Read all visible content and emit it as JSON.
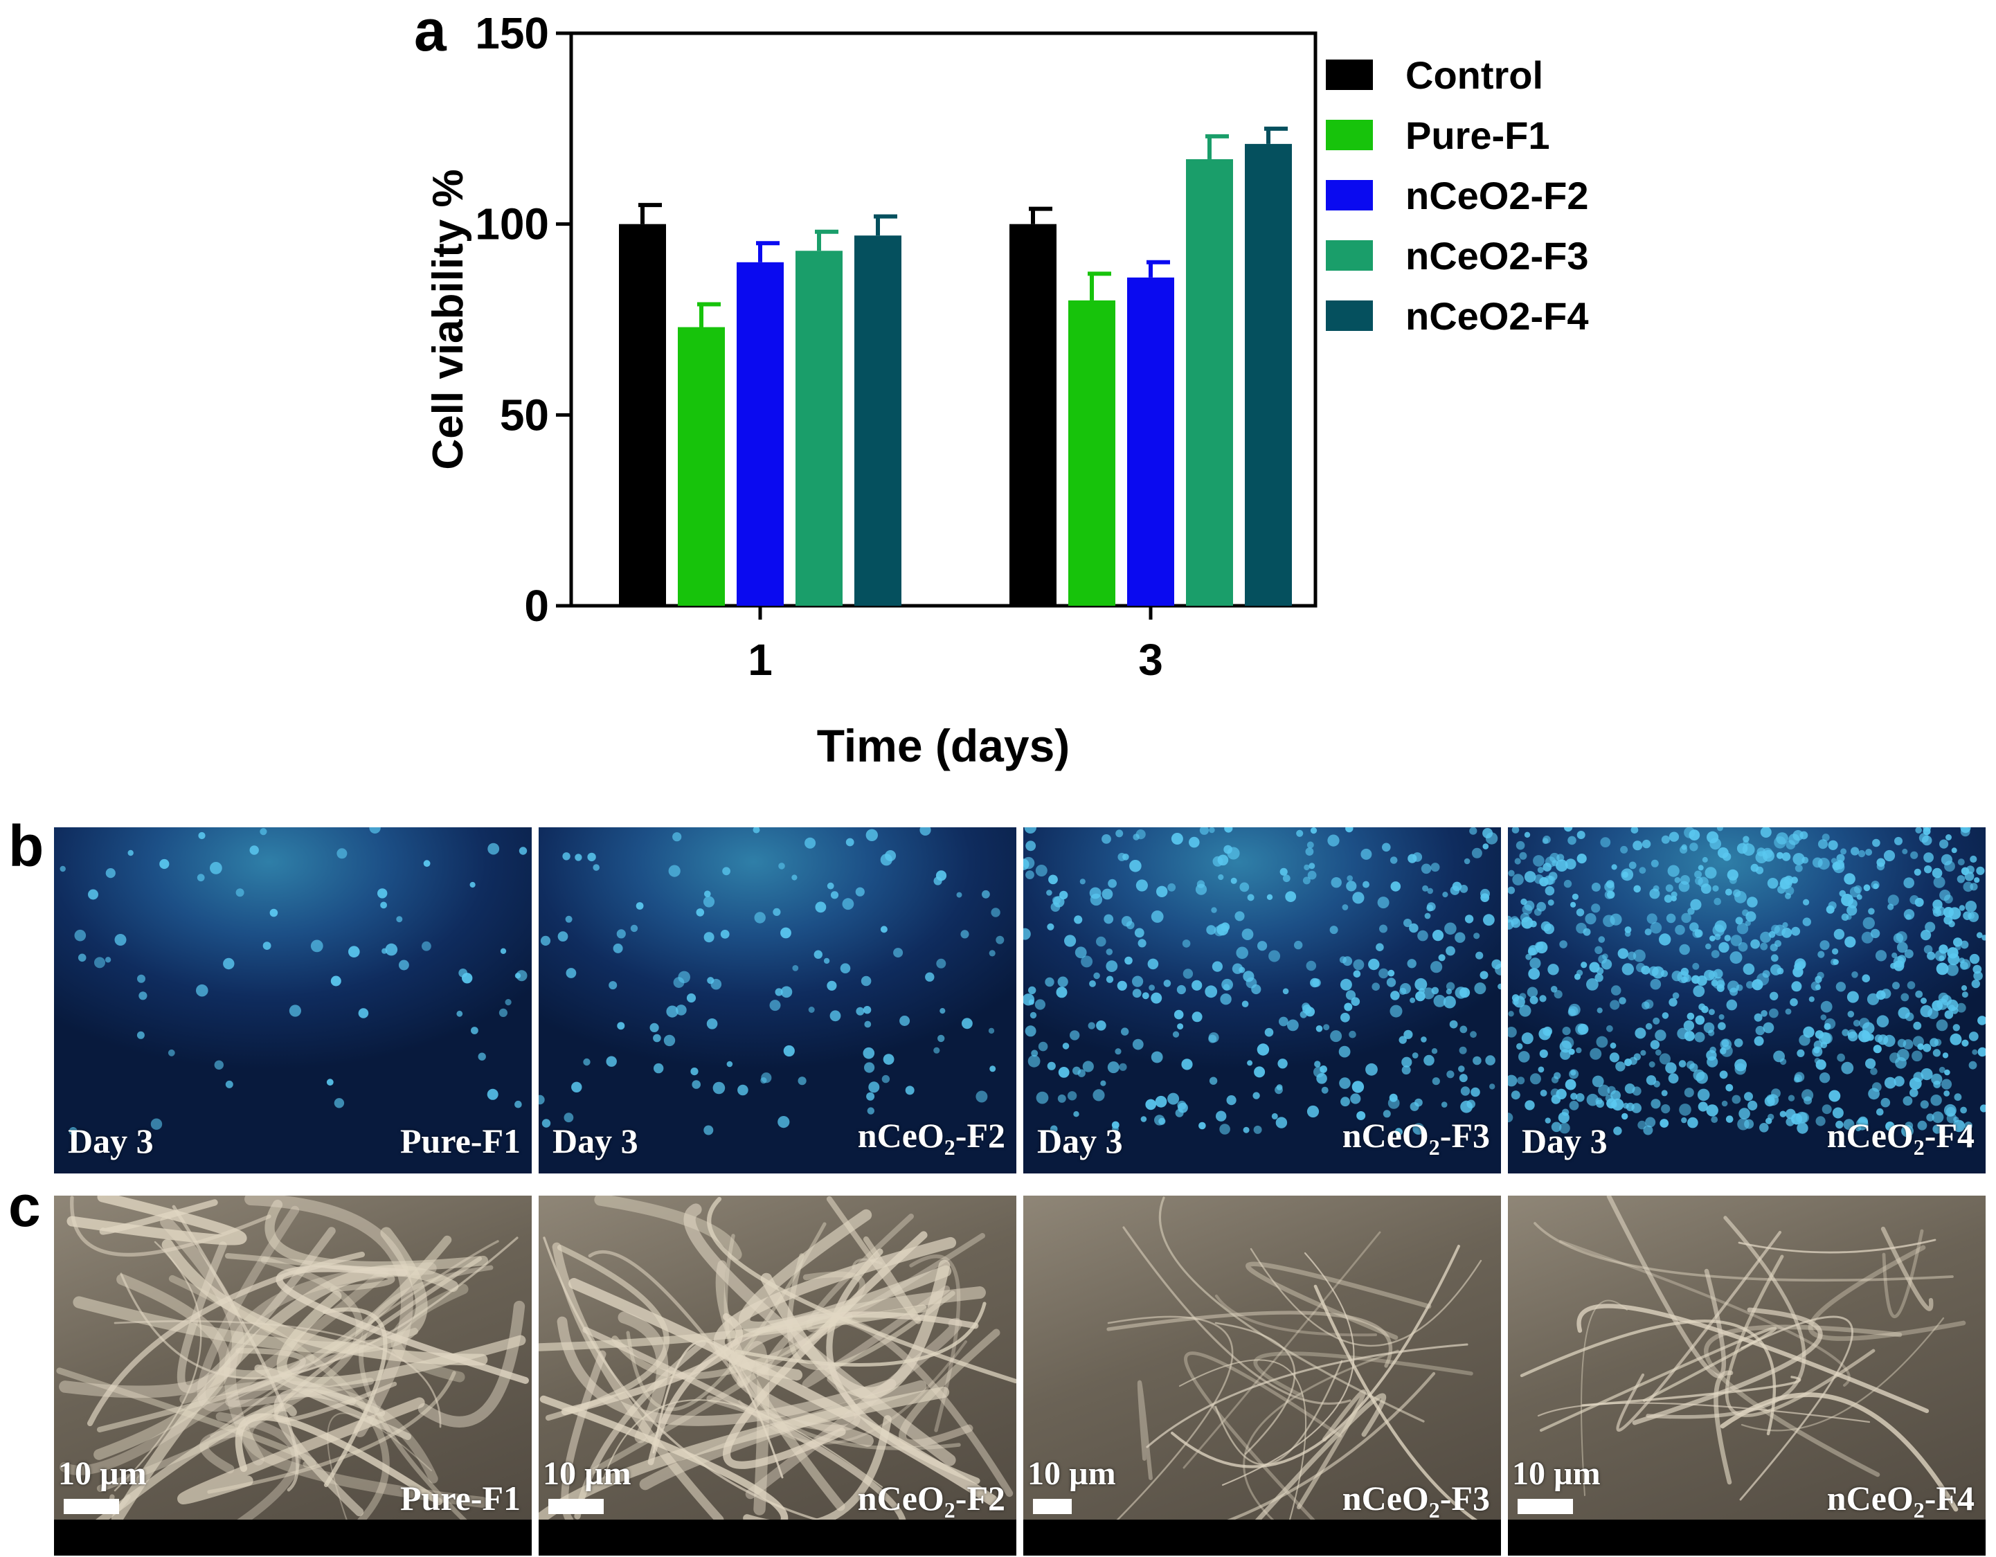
{
  "panels": {
    "a": "a",
    "b": "b",
    "c": "c"
  },
  "chart_data": {
    "type": "bar",
    "ylabel": "Cell viability %",
    "xlabel": "Time (days)",
    "ylim": [
      0,
      150
    ],
    "yticks": [
      0,
      50,
      100,
      150
    ],
    "categories": [
      "1",
      "3"
    ],
    "legend_position": "right",
    "series": [
      {
        "name": "Control",
        "color": "#000000",
        "values": [
          100,
          100
        ],
        "errors": [
          5,
          4
        ]
      },
      {
        "name": "Pure-F1",
        "color": "#17c30b",
        "values": [
          73,
          80
        ],
        "errors": [
          6,
          7
        ]
      },
      {
        "name": "nCeO2-F2",
        "color": "#0a0af0",
        "values": [
          90,
          86
        ],
        "errors": [
          5,
          4
        ]
      },
      {
        "name": "nCeO2-F3",
        "color": "#1a9e6a",
        "values": [
          93,
          117
        ],
        "errors": [
          5,
          6
        ]
      },
      {
        "name": "nCeO2-F4",
        "color": "#05505e",
        "values": [
          97,
          121
        ],
        "errors": [
          5,
          4
        ]
      }
    ]
  },
  "fluorescence": {
    "tiles": [
      {
        "day": "Day 3",
        "sample": "Pure-F1",
        "density": 60
      },
      {
        "day": "Day 3",
        "sample_prefix": "nCeO",
        "sample_sub": "2",
        "sample_suffix": "-F2",
        "density": 110
      },
      {
        "day": "Day 3",
        "sample_prefix": "nCeO",
        "sample_sub": "2",
        "sample_suffix": "-F3",
        "density": 320
      },
      {
        "day": "Day 3",
        "sample_prefix": "nCeO",
        "sample_sub": "2",
        "sample_suffix": "-F4",
        "density": 700
      }
    ]
  },
  "sem": {
    "scale": "10 µm",
    "tiles": [
      {
        "sample": "Pure-F1"
      },
      {
        "sample_prefix": "nCeO",
        "sample_sub": "2",
        "sample_suffix": "-F2"
      },
      {
        "sample_prefix": "nCeO",
        "sample_sub": "2",
        "sample_suffix": "-F3"
      },
      {
        "sample_prefix": "nCeO",
        "sample_sub": "2",
        "sample_suffix": "-F4"
      }
    ]
  }
}
